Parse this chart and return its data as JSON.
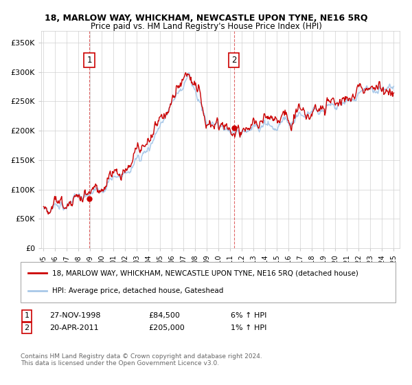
{
  "title": "18, MARLOW WAY, WHICKHAM, NEWCASTLE UPON TYNE, NE16 5RQ",
  "subtitle": "Price paid vs. HM Land Registry's House Price Index (HPI)",
  "ylabel_ticks": [
    "£0",
    "£50K",
    "£100K",
    "£150K",
    "£200K",
    "£250K",
    "£300K",
    "£350K"
  ],
  "ytick_values": [
    0,
    50000,
    100000,
    150000,
    200000,
    250000,
    300000,
    350000
  ],
  "ylim": [
    0,
    370000
  ],
  "xlim_start": 1994.8,
  "xlim_end": 2025.5,
  "hpi_color": "#a8c8e8",
  "price_color": "#cc0000",
  "fill_color": "#ddeeff",
  "marker1_year": 1998.92,
  "marker1_price": 84500,
  "marker2_year": 2011.3,
  "marker2_price": 205000,
  "legend_line1": "18, MARLOW WAY, WHICKHAM, NEWCASTLE UPON TYNE, NE16 5RQ (detached house)",
  "legend_line2": "HPI: Average price, detached house, Gateshead",
  "sale1_date": "27-NOV-1998",
  "sale1_price": "£84,500",
  "sale1_hpi": "6% ↑ HPI",
  "sale2_date": "20-APR-2011",
  "sale2_price": "£205,000",
  "sale2_hpi": "1% ↑ HPI",
  "footnote": "Contains HM Land Registry data © Crown copyright and database right 2024.\nThis data is licensed under the Open Government Licence v3.0.",
  "xticks": [
    1995,
    1996,
    1997,
    1998,
    1999,
    2000,
    2001,
    2002,
    2003,
    2004,
    2005,
    2006,
    2007,
    2008,
    2009,
    2010,
    2011,
    2012,
    2013,
    2014,
    2015,
    2016,
    2017,
    2018,
    2019,
    2020,
    2021,
    2022,
    2023,
    2024,
    2025
  ]
}
